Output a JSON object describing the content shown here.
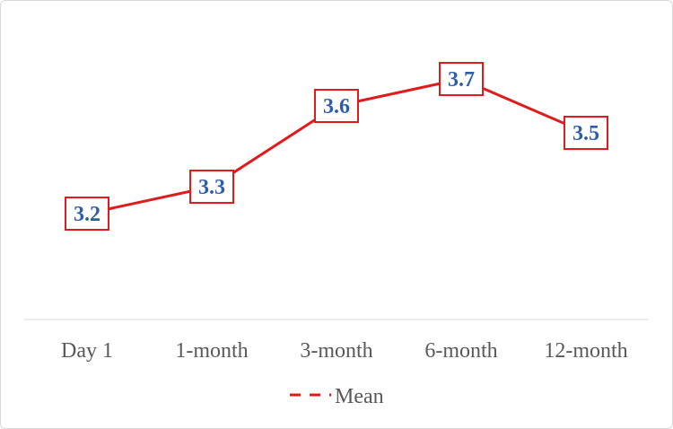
{
  "chart_data": {
    "type": "line",
    "categories": [
      "Day 1",
      "1-month",
      "3-month",
      "6-month",
      "12-month"
    ],
    "series": [
      {
        "name": "Mean",
        "values": [
          3.2,
          3.3,
          3.6,
          3.7,
          3.5
        ],
        "color": "#e01b1b"
      }
    ],
    "data_labels": [
      "3.2",
      "3.3",
      "3.6",
      "3.7",
      "3.5"
    ],
    "data_label_color": "#2f5ea8",
    "data_label_border_color": "#e01b1b",
    "legend": {
      "position": "bottom",
      "entries": [
        "Mean"
      ]
    },
    "axis_color": "#d9d9d9",
    "grid": false
  }
}
